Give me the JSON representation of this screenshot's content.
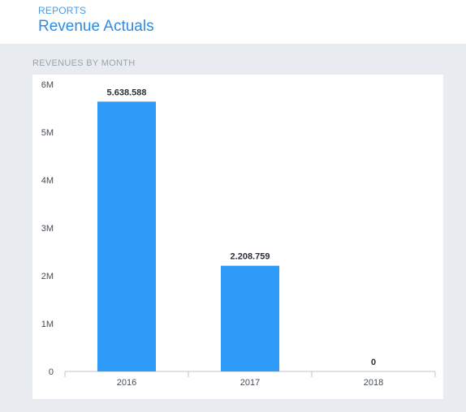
{
  "header": {
    "breadcrumb": "REPORTS",
    "title": "Revenue Actuals"
  },
  "section": {
    "label": "REVENUES BY MONTH"
  },
  "colors": {
    "accent": "#2b8de6",
    "bar": "#2d9bf7",
    "axis": "#b8c4cc"
  },
  "chart_data": {
    "type": "bar",
    "title": "REVENUES BY MONTH",
    "categories": [
      "2016",
      "2017",
      "2018"
    ],
    "values": [
      5638588,
      2208759,
      0
    ],
    "data_labels": [
      "5.638.588",
      "2.208.759",
      "0"
    ],
    "y_ticks": [
      {
        "value": 0,
        "label": "0"
      },
      {
        "value": 1000000,
        "label": "1M"
      },
      {
        "value": 2000000,
        "label": "2M"
      },
      {
        "value": 3000000,
        "label": "3M"
      },
      {
        "value": 4000000,
        "label": "4M"
      },
      {
        "value": 5000000,
        "label": "5M"
      },
      {
        "value": 6000000,
        "label": "6M"
      }
    ],
    "ylim": [
      0,
      6000000
    ],
    "xlabel": "",
    "ylabel": "",
    "grid": false,
    "legend": "none"
  }
}
